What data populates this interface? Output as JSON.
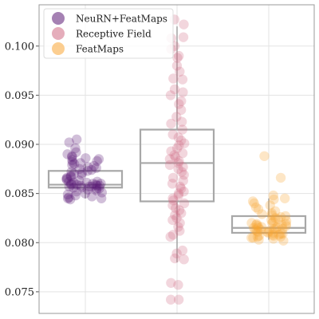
{
  "chart_data": {
    "type": "box+strip",
    "title": "",
    "xlabel": "",
    "ylabel": "",
    "ylim": [
      0.0728,
      0.1042
    ],
    "yticks": [
      0.075,
      0.08,
      0.085,
      0.09,
      0.095,
      0.1
    ],
    "ytick_labels": [
      "0.075",
      "0.080",
      "0.085",
      "0.090",
      "0.095",
      "0.100"
    ],
    "grid": "horizontal",
    "legend_position": "top-left",
    "series": [
      {
        "name": "NeuRN+FeatMaps",
        "color": "#5b1a75",
        "box": {
          "q1": 0.0856,
          "median": 0.0859,
          "q3": 0.0873,
          "whisker_low": 0.0845,
          "whisker_high": 0.088
        },
        "points": [
          0.0905,
          0.0902,
          0.0896,
          0.0892,
          0.089,
          0.0888,
          0.0887,
          0.0886,
          0.0885,
          0.0884,
          0.0883,
          0.0882,
          0.0881,
          0.088,
          0.0879,
          0.0878,
          0.0877,
          0.0876,
          0.0875,
          0.0874,
          0.0873,
          0.0872,
          0.0871,
          0.087,
          0.0869,
          0.0868,
          0.0867,
          0.0866,
          0.0865,
          0.0864,
          0.0863,
          0.0862,
          0.0862,
          0.0861,
          0.0861,
          0.086,
          0.086,
          0.086,
          0.0859,
          0.0859,
          0.0859,
          0.0858,
          0.0858,
          0.0858,
          0.0857,
          0.0857,
          0.0857,
          0.0856,
          0.0856,
          0.0855,
          0.0855,
          0.0854,
          0.0853,
          0.0852,
          0.0851,
          0.085,
          0.0849,
          0.0848,
          0.0847,
          0.0846,
          0.0845,
          0.0845,
          0.0844
        ]
      },
      {
        "name": "Receptive Field",
        "color": "#d06a84",
        "box": {
          "q1": 0.0842,
          "median": 0.0881,
          "q3": 0.0915,
          "whisker_low": 0.078,
          "whisker_high": 0.102
        },
        "points": [
          0.1027,
          0.1022,
          0.1009,
          0.1008,
          0.1,
          0.0997,
          0.099,
          0.0988,
          0.098,
          0.0974,
          0.0967,
          0.0966,
          0.0956,
          0.0953,
          0.095,
          0.0944,
          0.0941,
          0.0935,
          0.0928,
          0.0923,
          0.0921,
          0.0915,
          0.091,
          0.0907,
          0.0904,
          0.0901,
          0.0899,
          0.0896,
          0.0893,
          0.0891,
          0.0889,
          0.0887,
          0.0885,
          0.0883,
          0.0881,
          0.0879,
          0.0877,
          0.0875,
          0.0872,
          0.0869,
          0.0866,
          0.0863,
          0.086,
          0.0857,
          0.0855,
          0.0852,
          0.085,
          0.0848,
          0.0845,
          0.0843,
          0.084,
          0.0838,
          0.0835,
          0.0833,
          0.083,
          0.0828,
          0.0825,
          0.0823,
          0.082,
          0.0816,
          0.0812,
          0.0808,
          0.0806,
          0.0792,
          0.0789,
          0.0784,
          0.0783,
          0.0759,
          0.0757,
          0.0742,
          0.0742
        ]
      },
      {
        "name": "FeatMaps",
        "color": "#f9a534",
        "box": {
          "q1": 0.081,
          "median": 0.0815,
          "q3": 0.0827,
          "whisker_low": 0.0803,
          "whisker_high": 0.0845
        },
        "points": [
          0.0888,
          0.0866,
          0.0848,
          0.0845,
          0.0844,
          0.0842,
          0.084,
          0.0838,
          0.0836,
          0.0834,
          0.0832,
          0.083,
          0.0829,
          0.0828,
          0.0827,
          0.0826,
          0.0825,
          0.0824,
          0.0823,
          0.0822,
          0.0821,
          0.082,
          0.082,
          0.0819,
          0.0819,
          0.0818,
          0.0818,
          0.0817,
          0.0817,
          0.0816,
          0.0816,
          0.0815,
          0.0815,
          0.0815,
          0.0814,
          0.0814,
          0.0813,
          0.0813,
          0.0812,
          0.0812,
          0.0811,
          0.0811,
          0.081,
          0.081,
          0.0809,
          0.0809,
          0.0808,
          0.0808,
          0.0807,
          0.0807,
          0.0806,
          0.0806,
          0.0805,
          0.0805,
          0.0804,
          0.0803,
          0.0802
        ]
      }
    ]
  }
}
